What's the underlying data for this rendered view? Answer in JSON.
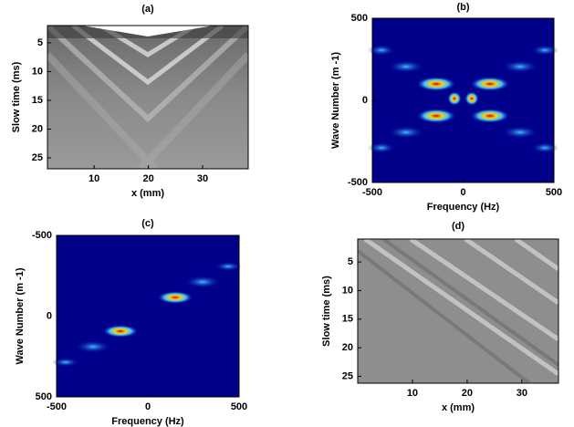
{
  "chart_data": [
    {
      "type": "image",
      "title": "(a)",
      "xlabel": "x (mm)",
      "ylabel": "Slow time (ms)",
      "xlim": [
        1.4,
        38.4
      ],
      "xticks": [
        10,
        20,
        30
      ],
      "ylim": [
        26.9,
        2
      ],
      "yticks": [
        5,
        10,
        15,
        20,
        25
      ]
    },
    {
      "type": "image",
      "title": "(b)",
      "xlabel": "Frequency (Hz)",
      "ylabel": "Wave Number (m -1)",
      "xlim": [
        -500,
        500
      ],
      "xticks": [
        -500,
        0,
        500
      ],
      "ylim": [
        -500,
        500
      ],
      "yticks": [
        -500,
        0,
        500
      ]
    },
    {
      "type": "image",
      "title": "(c)",
      "xlabel": "Frequency (Hz)",
      "ylabel": "Wave Number (m -1)",
      "xlim": [
        -500,
        500
      ],
      "xticks": [
        -500,
        0,
        500
      ],
      "ylim": [
        500,
        -500
      ],
      "yticks": [
        -500,
        0,
        500
      ]
    },
    {
      "type": "image",
      "title": "(d)",
      "xlabel": "x (mm)",
      "ylabel": "Slow time (ms)",
      "xlim": [
        0,
        36.7
      ],
      "xticks": [
        10,
        20,
        30
      ],
      "ylim": [
        26.2,
        1
      ],
      "yticks": [
        5,
        10,
        15,
        20,
        25
      ]
    }
  ]
}
